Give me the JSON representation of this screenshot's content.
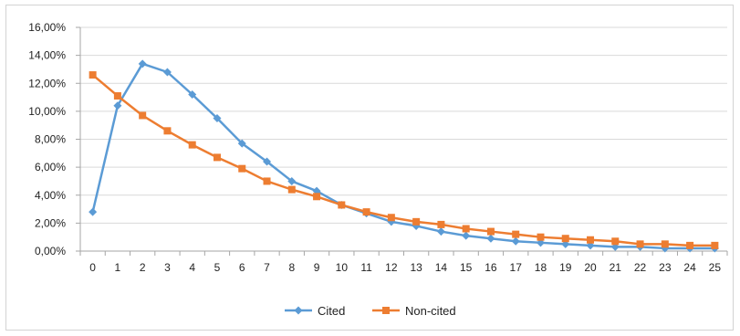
{
  "chart_data": {
    "type": "line",
    "title": "",
    "xlabel": "",
    "ylabel": "",
    "categories": [
      "0",
      "1",
      "2",
      "3",
      "4",
      "5",
      "6",
      "7",
      "8",
      "9",
      "10",
      "11",
      "12",
      "13",
      "14",
      "15",
      "16",
      "17",
      "18",
      "19",
      "20",
      "21",
      "22",
      "23",
      "24",
      "25"
    ],
    "ylim": [
      0,
      16
    ],
    "yticks": [
      0,
      2,
      4,
      6,
      8,
      10,
      12,
      14,
      16
    ],
    "ytick_labels": [
      "0,00%",
      "2,00%",
      "4,00%",
      "6,00%",
      "8,00%",
      "10,00%",
      "12,00%",
      "14,00%",
      "16,00%"
    ],
    "grid": true,
    "legend_position": "bottom",
    "series": [
      {
        "name": "Cited",
        "color": "#5b9bd5",
        "marker": "diamond",
        "values": [
          2.8,
          10.4,
          13.4,
          12.8,
          11.2,
          9.5,
          7.7,
          6.4,
          5.0,
          4.3,
          3.3,
          2.7,
          2.1,
          1.8,
          1.4,
          1.1,
          0.9,
          0.7,
          0.6,
          0.5,
          0.4,
          0.3,
          0.3,
          0.2,
          0.2,
          0.2
        ]
      },
      {
        "name": "Non-cited",
        "color": "#ed7d31",
        "marker": "square",
        "values": [
          12.6,
          11.1,
          9.7,
          8.6,
          7.6,
          6.7,
          5.9,
          5.0,
          4.4,
          3.9,
          3.3,
          2.8,
          2.4,
          2.1,
          1.9,
          1.6,
          1.4,
          1.2,
          1.0,
          0.9,
          0.8,
          0.7,
          0.5,
          0.5,
          0.4,
          0.4
        ]
      }
    ]
  }
}
